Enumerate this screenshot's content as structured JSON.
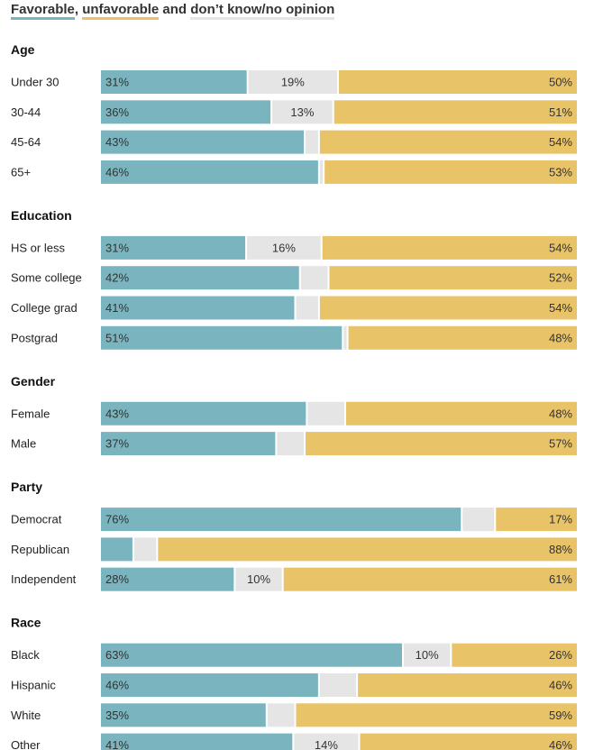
{
  "legend": {
    "favorable": "Favorable",
    "sep1": ", ",
    "unfavorable": "unfavorable",
    "sep2": " and ",
    "dontknow": "don’t know/no opinion"
  },
  "colors": {
    "favorable": "#7ab5bf",
    "dontknow": "#e5e5e5",
    "unfavorable": "#e8c367"
  },
  "chart_data": {
    "type": "bar",
    "orientation": "horizontal-stacked-100",
    "title": "Favorable, unfavorable and don’t know/no opinion",
    "series_names": [
      "Favorable",
      "Don’t know/no opinion",
      "Unfavorable"
    ],
    "groups": [
      {
        "title": "Age",
        "rows": [
          {
            "label": "Under 30",
            "values": [
              31,
              19,
              50
            ],
            "labels": [
              "31%",
              "19%",
              "50%"
            ]
          },
          {
            "label": "30-44",
            "values": [
              36,
              13,
              51
            ],
            "labels": [
              "36%",
              "13%",
              "51%"
            ]
          },
          {
            "label": "45-64",
            "values": [
              43,
              3,
              54
            ],
            "labels": [
              "43%",
              "",
              "54%"
            ]
          },
          {
            "label": "65+",
            "values": [
              46,
              1,
              53
            ],
            "labels": [
              "46%",
              "",
              "53%"
            ]
          }
        ]
      },
      {
        "title": "Education",
        "rows": [
          {
            "label": "HS or less",
            "values": [
              31,
              16,
              54
            ],
            "labels": [
              "31%",
              "16%",
              "54%"
            ]
          },
          {
            "label": "Some college",
            "values": [
              42,
              6,
              52
            ],
            "labels": [
              "42%",
              "",
              "52%"
            ]
          },
          {
            "label": "College grad",
            "values": [
              41,
              5,
              54
            ],
            "labels": [
              "41%",
              "",
              "54%"
            ]
          },
          {
            "label": "Postgrad",
            "values": [
              51,
              1,
              48
            ],
            "labels": [
              "51%",
              "",
              "48%"
            ]
          }
        ]
      },
      {
        "title": "Gender",
        "rows": [
          {
            "label": "Female",
            "values": [
              43,
              8,
              48
            ],
            "labels": [
              "43%",
              "",
              "48%"
            ]
          },
          {
            "label": "Male",
            "values": [
              37,
              6,
              57
            ],
            "labels": [
              "37%",
              "",
              "57%"
            ]
          }
        ]
      },
      {
        "title": "Party",
        "rows": [
          {
            "label": "Democrat",
            "values": [
              76,
              7,
              17
            ],
            "labels": [
              "76%",
              "",
              "17%"
            ]
          },
          {
            "label": "Republican",
            "values": [
              7,
              5,
              88
            ],
            "labels": [
              "",
              "",
              "88%"
            ]
          },
          {
            "label": "Independent",
            "values": [
              28,
              10,
              61
            ],
            "labels": [
              "28%",
              "10%",
              "61%"
            ]
          }
        ]
      },
      {
        "title": "Race",
        "rows": [
          {
            "label": "Black",
            "values": [
              63,
              10,
              26
            ],
            "labels": [
              "63%",
              "10%",
              "26%"
            ]
          },
          {
            "label": "Hispanic",
            "values": [
              46,
              8,
              46
            ],
            "labels": [
              "46%",
              "",
              "46%"
            ]
          },
          {
            "label": "White",
            "values": [
              35,
              6,
              59
            ],
            "labels": [
              "35%",
              "",
              "59%"
            ]
          },
          {
            "label": "Other",
            "values": [
              41,
              14,
              46
            ],
            "labels": [
              "41%",
              "14%",
              "46%"
            ]
          }
        ]
      }
    ]
  }
}
